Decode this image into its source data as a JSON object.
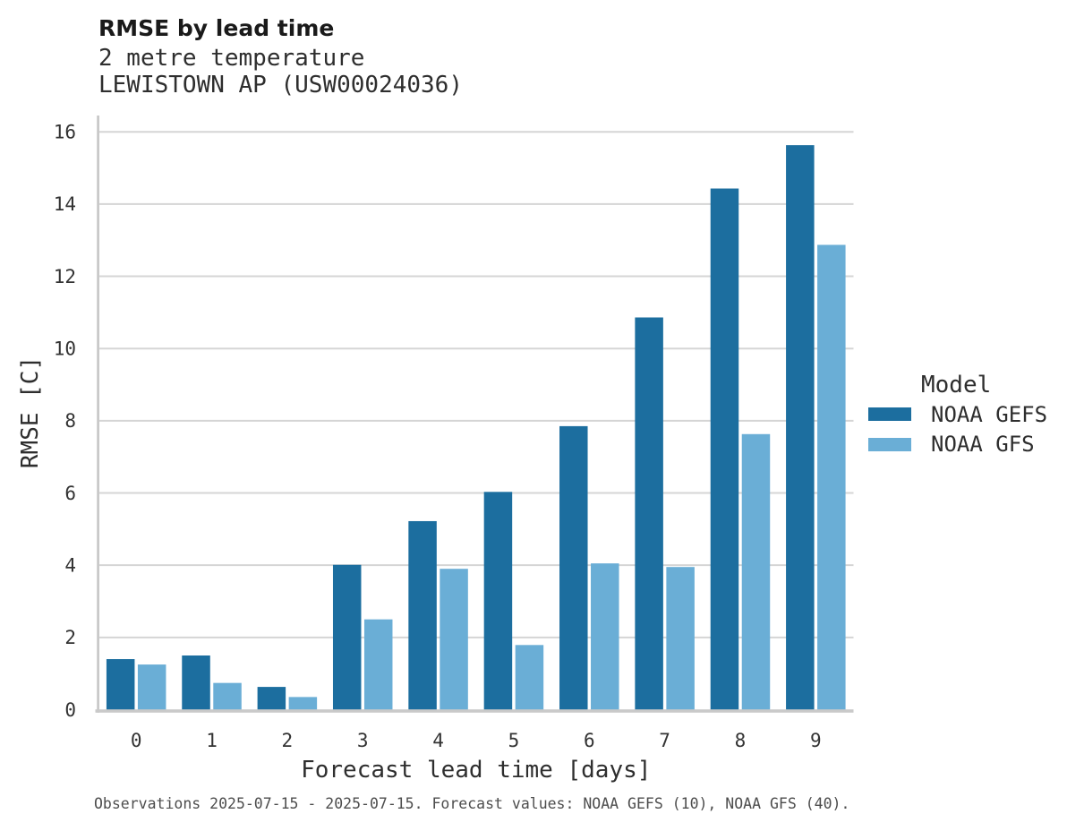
{
  "header": {
    "title": "RMSE by lead time",
    "subtitle1": "2 metre temperature",
    "subtitle2": "LEWISTOWN AP (USW00024036)"
  },
  "legend": {
    "title": "Model"
  },
  "footer": {
    "text": "Observations 2025-07-15 - 2025-07-15. Forecast values: NOAA GEFS (10), NOAA GFS (40)."
  },
  "colors": {
    "grid": "#d5d5d5",
    "axis": "#c9c9c9",
    "tick_text": "#333333",
    "gefs_blue": "#1c6e9f",
    "gfs_blue": "#6aaed6"
  },
  "chart_data": {
    "type": "bar",
    "title": "RMSE by lead time",
    "subtitle": [
      "2 metre temperature",
      "LEWISTOWN AP (USW00024036)"
    ],
    "categories": [
      "0",
      "1",
      "2",
      "3",
      "4",
      "5",
      "6",
      "7",
      "8",
      "9"
    ],
    "series": [
      {
        "name": "NOAA GEFS",
        "color": "#1c6e9f",
        "values": [
          1.4,
          1.5,
          0.63,
          4.01,
          5.22,
          6.03,
          7.85,
          10.86,
          14.43,
          15.63
        ]
      },
      {
        "name": "NOAA GFS",
        "color": "#6aaed6",
        "values": [
          1.25,
          0.74,
          0.35,
          2.5,
          3.9,
          1.79,
          4.05,
          3.95,
          7.63,
          12.87
        ]
      }
    ],
    "xlabel": "Forecast lead time [days]",
    "ylabel": "RMSE [C]",
    "ylim": [
      0,
      16.45
    ],
    "yticks": [
      0,
      2,
      4,
      6,
      8,
      10,
      12,
      14,
      16
    ],
    "grid": "horizontal-major",
    "legend_position": "right",
    "legend_title": "Model"
  }
}
